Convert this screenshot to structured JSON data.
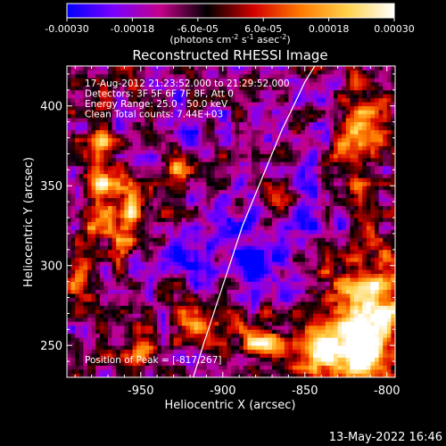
{
  "chart_data": {
    "type": "heatmap",
    "title": "Reconstructed RHESSI Image",
    "xlabel": "Heliocentric X (arcsec)",
    "ylabel": "Heliocentric Y (arcsec)",
    "xlim": [
      -995,
      -795
    ],
    "ylim": [
      230,
      425
    ],
    "x_ticks": [
      -950,
      -900,
      -850,
      -800
    ],
    "y_ticks": [
      250,
      300,
      350,
      400
    ],
    "x_tick_labels": [
      "-950",
      "-900",
      "-850",
      "-800"
    ],
    "y_tick_labels": [
      "250",
      "300",
      "350",
      "400"
    ],
    "colorbar": {
      "range": [
        -0.0003,
        0.0003
      ],
      "ticks": [
        -0.0003,
        -0.00018,
        -6e-05,
        6e-05,
        0.00018,
        0.0003
      ],
      "tick_labels": [
        "-0.00030",
        "-0.00018",
        "-6.0e-05",
        "6.0e-05",
        "0.00018",
        "0.00030"
      ],
      "unit_prefix": "(photons cm",
      "unit_sup1": "-2",
      "unit_mid": " s",
      "unit_sup2": "-1",
      "unit_mid2": " asec",
      "unit_sup3": "-2",
      "unit_suffix": ")",
      "colors": [
        "#0000ff",
        "#7a00ff",
        "#c4008a",
        "#000000",
        "#d40000",
        "#ff7a00",
        "#ffd24a",
        "#ffffff"
      ]
    },
    "info_lines": [
      "17-Aug-2012 21:23:52.000 to 21:29:52.000",
      "Detectors: 3F 5F 6F 7F 8F, Att 0",
      "Energy Range: 25.0 - 50.0 keV",
      "Clean     Total counts: 7.44E+03"
    ],
    "peak_text": "Position of Peak = [-817,267]",
    "limb": {
      "x": [
        -918,
        -912,
        -904,
        -896,
        -888,
        -880,
        -872,
        -864,
        -856,
        -850,
        -844
      ],
      "y": [
        230,
        250,
        275,
        300,
        325,
        345,
        365,
        385,
        402,
        415,
        425
      ]
    },
    "hot_features": [
      {
        "x": -812,
        "y": 262,
        "amp": 1.0,
        "sx": 16,
        "sy": 28
      },
      {
        "x": -838,
        "y": 245,
        "amp": 0.7,
        "sx": 12,
        "sy": 10
      },
      {
        "x": -880,
        "y": 252,
        "amp": 0.65,
        "sx": 14,
        "sy": 8
      },
      {
        "x": -920,
        "y": 265,
        "amp": 0.55,
        "sx": 8,
        "sy": 12
      },
      {
        "x": -960,
        "y": 322,
        "amp": 0.7,
        "sx": 7,
        "sy": 22
      },
      {
        "x": -975,
        "y": 360,
        "amp": 0.55,
        "sx": 6,
        "sy": 30
      },
      {
        "x": -930,
        "y": 360,
        "amp": 0.45,
        "sx": 6,
        "sy": 18
      },
      {
        "x": -865,
        "y": 340,
        "amp": 0.45,
        "sx": 8,
        "sy": 9
      },
      {
        "x": -815,
        "y": 385,
        "amp": 0.5,
        "sx": 10,
        "sy": 22
      },
      {
        "x": -950,
        "y": 245,
        "amp": 0.45,
        "sx": 10,
        "sy": 6
      },
      {
        "x": -985,
        "y": 295,
        "amp": 0.5,
        "sx": 6,
        "sy": 14
      }
    ],
    "cold_features": [
      {
        "x": -880,
        "y": 300,
        "amp": 0.85,
        "sx": 12,
        "sy": 12
      },
      {
        "x": -925,
        "y": 305,
        "amp": 0.7,
        "sx": 9,
        "sy": 10
      },
      {
        "x": -900,
        "y": 325,
        "amp": 0.5,
        "sx": 10,
        "sy": 10
      },
      {
        "x": -960,
        "y": 300,
        "amp": 0.55,
        "sx": 10,
        "sy": 14
      },
      {
        "x": -850,
        "y": 330,
        "amp": 0.55,
        "sx": 12,
        "sy": 14
      },
      {
        "x": -900,
        "y": 255,
        "amp": 0.4,
        "sx": 8,
        "sy": 6
      },
      {
        "x": -830,
        "y": 395,
        "amp": 0.35,
        "sx": 8,
        "sy": 8
      },
      {
        "x": -920,
        "y": 385,
        "amp": 0.35,
        "sx": 10,
        "sy": 8
      }
    ]
  },
  "footer": {
    "date_stamp": "13-May-2022 16:46"
  }
}
